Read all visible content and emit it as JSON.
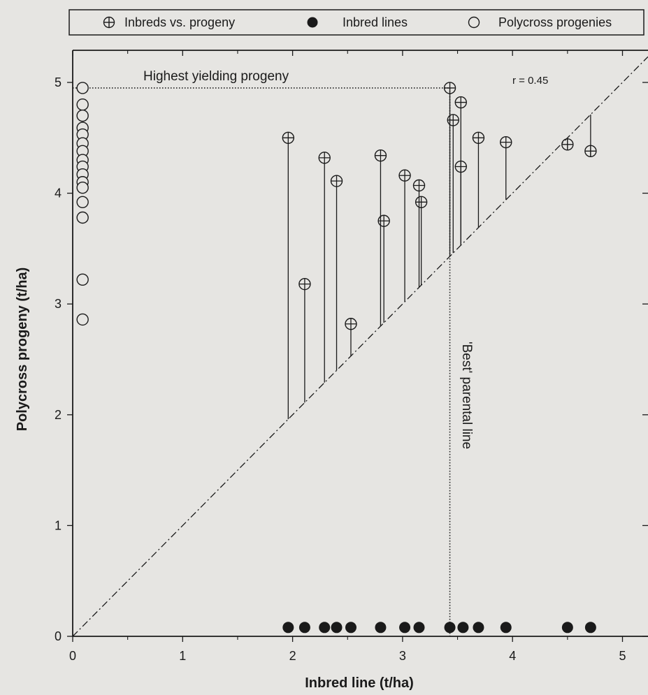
{
  "legend": {
    "items": [
      {
        "label": "Inbreds vs. progeny",
        "marker": "circle-plus"
      },
      {
        "label": "Inbred lines",
        "marker": "filled-circle"
      },
      {
        "label": "Polycross progenies",
        "marker": "open-circle"
      }
    ]
  },
  "annotations": {
    "highest": "Highest yielding progeny",
    "best": "'Best' parental line",
    "r": "r = 0.45"
  },
  "colors": {
    "background": "#e6e5e2",
    "ink": "#1a1a1a"
  },
  "chart_data": {
    "type": "scatter",
    "xlabel": "Inbred line (t/ha)",
    "ylabel": "Polycross progeny (t/ha)",
    "xlim": [
      0,
      5.2
    ],
    "ylim": [
      0,
      5.2
    ],
    "xticks": [
      0,
      1,
      2,
      3,
      4,
      5
    ],
    "yticks": [
      0,
      1,
      2,
      3,
      4,
      5
    ],
    "reference_line": "y = x",
    "grid": false,
    "legend_position": "top",
    "inbred_vs_progeny": [
      {
        "x": 1.96,
        "y": 4.5
      },
      {
        "x": 2.11,
        "y": 3.18
      },
      {
        "x": 2.29,
        "y": 4.32
      },
      {
        "x": 2.4,
        "y": 4.11
      },
      {
        "x": 2.53,
        "y": 2.82
      },
      {
        "x": 2.8,
        "y": 4.34
      },
      {
        "x": 2.83,
        "y": 3.75
      },
      {
        "x": 3.02,
        "y": 4.16
      },
      {
        "x": 3.15,
        "y": 4.07
      },
      {
        "x": 3.17,
        "y": 3.92
      },
      {
        "x": 3.43,
        "y": 4.95
      },
      {
        "x": 3.46,
        "y": 4.66
      },
      {
        "x": 3.53,
        "y": 4.82
      },
      {
        "x": 3.53,
        "y": 4.24
      },
      {
        "x": 3.69,
        "y": 4.5
      },
      {
        "x": 3.94,
        "y": 4.46
      },
      {
        "x": 4.5,
        "y": 4.44
      },
      {
        "x": 4.71,
        "y": 4.38
      }
    ],
    "inbred_lines": [
      1.96,
      2.11,
      2.29,
      2.4,
      2.53,
      2.8,
      3.02,
      3.15,
      3.43,
      3.55,
      3.69,
      3.94,
      4.5,
      4.71
    ],
    "inbred_lines_y": 0.08,
    "polycross_progenies": [
      4.95,
      4.8,
      4.7,
      4.59,
      4.53,
      4.45,
      4.38,
      4.3,
      4.24,
      4.17,
      4.1,
      4.05,
      3.92,
      3.78,
      3.22,
      2.86
    ],
    "polycross_progenies_x": 0.09
  }
}
